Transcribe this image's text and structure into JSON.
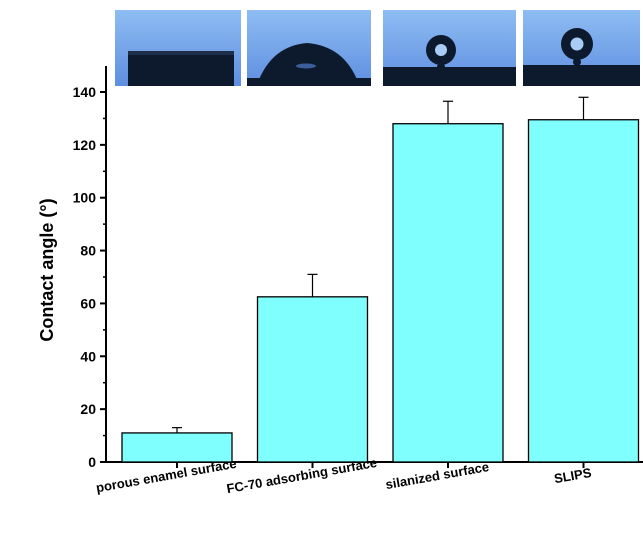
{
  "chart_data": {
    "type": "bar",
    "categories": [
      "porous enamel surface",
      "FC-70 adsorbing surface",
      "silanized surface",
      "SLIPS"
    ],
    "values": [
      11,
      62.5,
      128,
      129.5
    ],
    "errors": [
      2,
      8.5,
      8.5,
      8.5
    ],
    "ylabel": "Contact angle (°)",
    "xlabel": "",
    "ylim": [
      0,
      150
    ],
    "yticks": [
      0,
      20,
      40,
      60,
      80,
      100,
      120,
      140
    ],
    "bar_color": "#80FFFF",
    "bar_edge_color": "#000000",
    "inset_image_bg": "#6F9EE8",
    "inset_images": [
      {
        "name": "droplet-spread-flat-image"
      },
      {
        "name": "droplet-low-dome-image"
      },
      {
        "name": "droplet-sphere-image"
      },
      {
        "name": "droplet-sphere-image"
      }
    ]
  }
}
